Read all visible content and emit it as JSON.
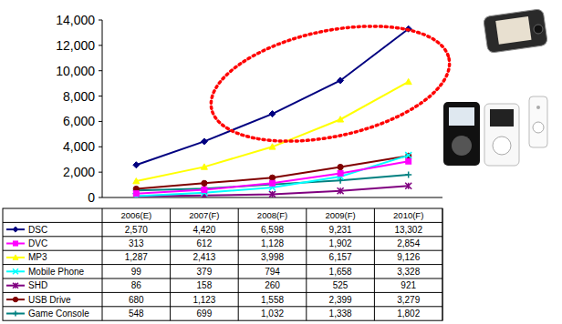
{
  "chart_data": {
    "type": "line",
    "categories": [
      "2006(E)",
      "2007(F)",
      "2008(F)",
      "2009(F)",
      "2010(F)"
    ],
    "ylim": [
      0,
      14000
    ],
    "yticks": [
      0,
      {
        "value": 2000,
        "label": "2,000"
      },
      {
        "value": 4000,
        "label": "4,000"
      },
      {
        "value": 6000,
        "label": "6,000"
      },
      {
        "value": 8000,
        "label": "8,000"
      },
      {
        "value": 10000,
        "label": "10,000"
      },
      {
        "value": 12000,
        "label": "12,000"
      },
      {
        "value": 14000,
        "label": "14,000"
      }
    ],
    "grid": false,
    "series": [
      {
        "name": "DSC",
        "color": "#000080",
        "marker": "diamond",
        "values": [
          2570,
          4420,
          6598,
          9231,
          13302
        ],
        "value_labels": [
          "2,570",
          "4,420",
          "6,598",
          "9,231",
          "13,302"
        ]
      },
      {
        "name": "DVC",
        "color": "#ff00ff",
        "marker": "square",
        "values": [
          313,
          612,
          1128,
          1902,
          2854
        ],
        "value_labels": [
          "313",
          "612",
          "1,128",
          "1,902",
          "2,854"
        ]
      },
      {
        "name": "MP3",
        "color": "#ffff00",
        "marker": "triangle",
        "values": [
          1287,
          2413,
          3998,
          6157,
          9126
        ],
        "value_labels": [
          "1,287",
          "2,413",
          "3,998",
          "6,157",
          "9,126"
        ]
      },
      {
        "name": "Mobile Phone",
        "color": "#00ffff",
        "marker": "x",
        "values": [
          99,
          379,
          794,
          1658,
          3328
        ],
        "value_labels": [
          "99",
          "379",
          "794",
          "1,658",
          "3,328"
        ]
      },
      {
        "name": "SHD",
        "color": "#800080",
        "marker": "star",
        "values": [
          86,
          158,
          260,
          525,
          921
        ],
        "value_labels": [
          "86",
          "158",
          "260",
          "525",
          "921"
        ]
      },
      {
        "name": "USB Drive",
        "color": "#800000",
        "marker": "circle",
        "values": [
          680,
          1123,
          1558,
          2399,
          3279
        ],
        "value_labels": [
          "680",
          "1,123",
          "1,558",
          "2,399",
          "3,279"
        ]
      },
      {
        "name": "Game Console",
        "color": "#008080",
        "marker": "plus",
        "values": [
          548,
          699,
          1032,
          1338,
          1802
        ],
        "value_labels": [
          "548",
          "699",
          "1,032",
          "1,338",
          "1,802"
        ]
      }
    ]
  }
}
